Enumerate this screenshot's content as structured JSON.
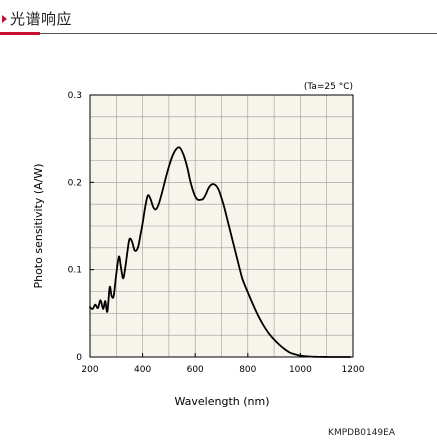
{
  "header": {
    "title": "光谱响应",
    "accent_color": "#c8102e"
  },
  "figure": {
    "catalog_number": "KMPDB0149EA"
  },
  "chart_data": {
    "type": "line",
    "title": "",
    "annotation": "(Ta=25 °C)",
    "xlabel": "Wavelength (nm)",
    "ylabel": "Photo sensitivity (A/W)",
    "xlim": [
      200,
      1200
    ],
    "ylim": [
      0,
      0.3
    ],
    "xticks": [
      200,
      400,
      600,
      800,
      1000,
      1200
    ],
    "xtick_labels": [
      "200",
      "400",
      "600",
      "800",
      "1000",
      "1200"
    ],
    "yticks": [
      0,
      0.1,
      0.2,
      0.3
    ],
    "ytick_labels": [
      "0",
      "0.1",
      "0.2",
      "0.3"
    ],
    "grid": true,
    "x_minor_step": 100,
    "y_minor_step": 0.025,
    "series": [
      {
        "color": "#000000",
        "x": [
          200,
          210,
          220,
          230,
          240,
          250,
          258,
          266,
          275,
          282,
          290,
          300,
          310,
          318,
          326,
          334,
          342,
          350,
          360,
          370,
          382,
          392,
          400,
          410,
          420,
          430,
          440,
          450,
          460,
          470,
          478,
          488,
          500,
          512,
          525,
          540,
          555,
          570,
          580,
          590,
          600,
          610,
          620,
          630,
          640,
          650,
          660,
          670,
          680,
          690,
          700,
          710,
          720,
          730,
          740,
          750,
          760,
          770,
          780,
          800,
          820,
          840,
          860,
          880,
          900,
          920,
          940,
          960,
          980,
          1000,
          1020,
          1040,
          1060,
          1080,
          1100,
          1120,
          1140,
          1160,
          1180,
          1190
        ],
        "y": [
          0.057,
          0.055,
          0.06,
          0.056,
          0.065,
          0.055,
          0.064,
          0.052,
          0.08,
          0.07,
          0.07,
          0.095,
          0.115,
          0.102,
          0.09,
          0.102,
          0.12,
          0.135,
          0.132,
          0.122,
          0.125,
          0.14,
          0.153,
          0.172,
          0.185,
          0.181,
          0.172,
          0.169,
          0.174,
          0.184,
          0.193,
          0.205,
          0.218,
          0.229,
          0.237,
          0.24,
          0.232,
          0.217,
          0.203,
          0.192,
          0.184,
          0.18,
          0.18,
          0.181,
          0.186,
          0.193,
          0.197,
          0.198,
          0.196,
          0.191,
          0.182,
          0.172,
          0.16,
          0.148,
          0.136,
          0.124,
          0.112,
          0.1,
          0.089,
          0.074,
          0.06,
          0.047,
          0.036,
          0.027,
          0.02,
          0.014,
          0.009,
          0.005,
          0.003,
          0.0015,
          0.0008,
          0.0004,
          0.0002,
          0.0001,
          5e-05,
          0.0,
          0.0,
          0.0,
          0.0,
          0.0
        ]
      }
    ]
  }
}
